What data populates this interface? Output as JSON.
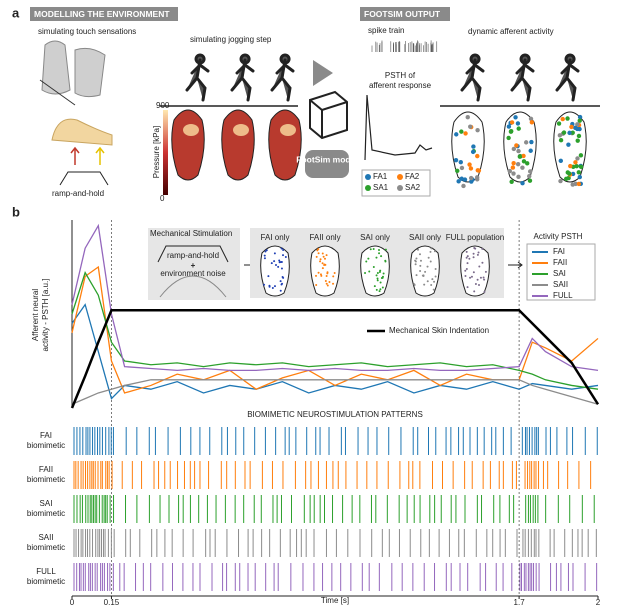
{
  "panel_a": {
    "label": "a",
    "modelling": {
      "header": "MODELLING THE ENVIRONMENT",
      "touch": "simulating touch sensations",
      "ramp": "ramp-and-hold",
      "jogging": "simulating jogging step",
      "colorbar": {
        "label": "Pressure [kPa]",
        "ticks": [
          900,
          0
        ]
      }
    },
    "model": "FootSim model",
    "output": {
      "header": "FOOTSIM OUTPUT",
      "spike_train": "spike train",
      "psth": [
        "PSTH of",
        "afferent response"
      ],
      "dynamic": "dynamic afferent activity",
      "legend": [
        {
          "name": "FA1",
          "color": "#1f77b4"
        },
        {
          "name": "FA2",
          "color": "#ff7f0e"
        },
        {
          "name": "SA1",
          "color": "#2ca02c"
        },
        {
          "name": "SA2",
          "color": "#8c8c8c"
        }
      ]
    }
  },
  "panel_b": {
    "label": "b",
    "inset": {
      "title": "Mechanical Stimulation",
      "ramp": "ramp-and-hold",
      "plus": "+",
      "noise": "environment noise"
    },
    "populations": [
      "FAI only",
      "FAII only",
      "SAI only",
      "SAII only",
      "FULL population"
    ],
    "psth_title": "Activity PSTH",
    "raster_title": "BIOMIMETIC NEUROSTIMULATION PATTERNS",
    "rasters": [
      {
        "name": "FAI",
        "suffix": "biomimetic"
      },
      {
        "name": "FAII",
        "suffix": "biomimetic"
      },
      {
        "name": "SAI",
        "suffix": "biomimetic"
      },
      {
        "name": "SAII",
        "suffix": "biomimetic"
      },
      {
        "name": "FULL",
        "suffix": "biomimetic"
      }
    ]
  },
  "chart_data": {
    "type": "line",
    "ylabel": [
      "Afferent neural",
      "activity - PSTH [a.u.]"
    ],
    "xlabel": "Time [s]",
    "xlim": [
      0,
      2
    ],
    "xticks": [
      0,
      0.15,
      1.7,
      2
    ],
    "ylim": [
      0,
      1
    ],
    "x": [
      0,
      0.05,
      0.1,
      0.15,
      0.2,
      0.3,
      0.4,
      0.5,
      0.6,
      0.7,
      0.8,
      0.9,
      1.0,
      1.1,
      1.2,
      1.3,
      1.4,
      1.5,
      1.6,
      1.7,
      1.75,
      1.8,
      1.9,
      2
    ],
    "series": [
      {
        "name": "FAI",
        "color": "#1f77b4",
        "values": [
          0.45,
          0.55,
          0.3,
          0.05,
          0.12,
          0.1,
          0.14,
          0.08,
          0.12,
          0.1,
          0.14,
          0.08,
          0.12,
          0.1,
          0.14,
          0.08,
          0.12,
          0.1,
          0.14,
          0.1,
          0.13,
          0.12,
          0.1,
          0.12
        ]
      },
      {
        "name": "FAII",
        "color": "#ff7f0e",
        "values": [
          0.4,
          0.7,
          0.75,
          0.25,
          0.08,
          0.12,
          0.18,
          0.15,
          0.2,
          0.1,
          0.16,
          0.2,
          0.12,
          0.18,
          0.15,
          0.2,
          0.12,
          0.18,
          0.15,
          0.15,
          0.35,
          0.32,
          0.25,
          0.37
        ]
      },
      {
        "name": "SAI",
        "color": "#2ca02c",
        "values": [
          0.5,
          0.72,
          0.6,
          0.35,
          0.25,
          0.23,
          0.24,
          0.22,
          0.24,
          0.23,
          0.24,
          0.22,
          0.23,
          0.24,
          0.22,
          0.23,
          0.24,
          0.22,
          0.23,
          0.2,
          0.18,
          0.15,
          0.12,
          0.1
        ]
      },
      {
        "name": "SAII",
        "color": "#8c8c8c",
        "values": [
          0.02,
          0.05,
          0.08,
          0.1,
          0.12,
          0.15,
          0.15,
          0.15,
          0.15,
          0.15,
          0.15,
          0.15,
          0.15,
          0.15,
          0.15,
          0.15,
          0.15,
          0.15,
          0.15,
          0.15,
          0.12,
          0.1,
          0.06,
          0.02
        ]
      },
      {
        "name": "FULL",
        "color": "#9467bd",
        "values": [
          0.55,
          0.85,
          0.97,
          0.5,
          0.22,
          0.21,
          0.2,
          0.21,
          0.2,
          0.2,
          0.21,
          0.2,
          0.21,
          0.2,
          0.2,
          0.21,
          0.2,
          0.2,
          0.21,
          0.22,
          0.37,
          0.3,
          0.22,
          0.2
        ]
      },
      {
        "name": "Mechanical Skin Indentation",
        "color": "#000000",
        "values": [
          0,
          0.17,
          0.35,
          0.52,
          0.52,
          0.52,
          0.52,
          0.52,
          0.52,
          0.52,
          0.52,
          0.52,
          0.52,
          0.52,
          0.52,
          0.52,
          0.52,
          0.52,
          0.52,
          0.52,
          0.45,
          0.38,
          0.24,
          0.02
        ]
      }
    ]
  }
}
